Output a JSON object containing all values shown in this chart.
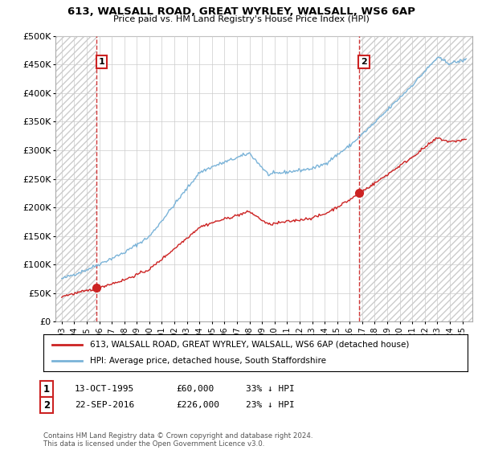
{
  "title": "613, WALSALL ROAD, GREAT WYRLEY, WALSALL, WS6 6AP",
  "subtitle": "Price paid vs. HM Land Registry's House Price Index (HPI)",
  "ylim": [
    0,
    500000
  ],
  "yticks": [
    0,
    50000,
    100000,
    150000,
    200000,
    250000,
    300000,
    350000,
    400000,
    450000,
    500000
  ],
  "ytick_labels": [
    "£0",
    "£50K",
    "£100K",
    "£150K",
    "£200K",
    "£250K",
    "£300K",
    "£350K",
    "£400K",
    "£450K",
    "£500K"
  ],
  "hpi_color": "#7ab3d8",
  "price_color": "#cc2222",
  "annotation_box_color": "#cc2222",
  "point1": {
    "year": 1995.79,
    "value": 60000,
    "label": "1",
    "date": "13-OCT-1995",
    "price": "£60,000",
    "hpi_note": "33% ↓ HPI"
  },
  "point2": {
    "year": 2016.73,
    "value": 226000,
    "label": "2",
    "date": "22-SEP-2016",
    "price": "£226,000",
    "hpi_note": "23% ↓ HPI"
  },
  "legend_label1": "613, WALSALL ROAD, GREAT WYRLEY, WALSALL, WS6 6AP (detached house)",
  "legend_label2": "HPI: Average price, detached house, South Staffordshire",
  "footer": "Contains HM Land Registry data © Crown copyright and database right 2024.\nThis data is licensed under the Open Government Licence v3.0.",
  "xlim_start": 1992.5,
  "xlim_end": 2025.8,
  "grid_color": "#cccccc",
  "hatch_color": "#cccccc"
}
